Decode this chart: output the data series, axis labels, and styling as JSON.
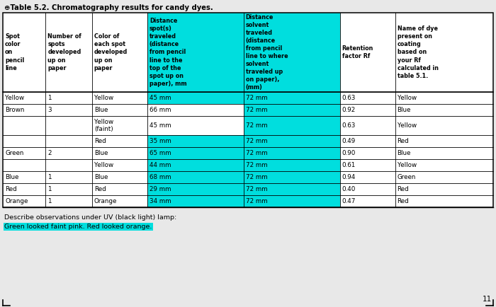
{
  "title": "⊕Table 5.2. Chromatography results for candy dyes.",
  "headers": [
    "Spot\ncolor\non\npencil\nline",
    "Number of\nspots\ndeveloped\nup on\npaper",
    "Color of\neach spot\ndeveloped\nup on\npaper",
    "Distance\nspot(s)\ntraveled\n(distance\nfrom pencil\nline to the\ntop of the\nspot up on\npaper), mm",
    "Distance\nsolvent\ntraveled\n(distance\nfrom pencil\nline to where\nsolvent\ntraveled up\non paper),\n(mm)",
    "Retention\nfactor Rf",
    "Name of dye\npresent on\ncoating\nbased on\nyour Rf\ncalculated in\ntable 5.1."
  ],
  "rows": [
    [
      "Yellow",
      "1",
      "Yellow",
      "45 mm",
      "72 mm",
      "0.63",
      "Yellow"
    ],
    [
      "Brown",
      "3",
      "Blue",
      "66 mm",
      "72 mm",
      "0.92",
      "Blue"
    ],
    [
      "",
      "",
      "Yellow\n(faint)",
      "45 mm",
      "72 mm",
      "0.63",
      "Yellow"
    ],
    [
      "",
      "",
      "Red",
      "35 mm",
      "72 mm",
      "0.49",
      "Red"
    ],
    [
      "Green",
      "2",
      "Blue",
      "65 mm",
      "72 mm",
      "0.90",
      "Blue"
    ],
    [
      "",
      "",
      "Yellow",
      "44 mm",
      "72 mm",
      "0.61",
      "Yellow"
    ],
    [
      "Blue",
      "1",
      "Blue",
      "68 mm",
      "72 mm",
      "0.94",
      "Green"
    ],
    [
      "Red",
      "1",
      "Red",
      "29 mm",
      "72 mm",
      "0.40",
      "Red"
    ],
    [
      "Orange",
      "1",
      "Orange",
      "34 mm",
      "72 mm",
      "0.47",
      "Red"
    ]
  ],
  "highlight_col3": [
    true,
    false,
    false,
    true,
    true,
    true,
    true,
    true,
    true
  ],
  "highlight_col4": [
    true,
    true,
    true,
    true,
    true,
    true,
    true,
    true,
    true
  ],
  "col3_highlight_color": "#00dede",
  "col4_highlight_color": "#00dede",
  "uv_label": "Describe observations under UV (black light) lamp:",
  "uv_text": "Green looked faint pink. Red looked orange.",
  "uv_text_highlight": "#00dede",
  "background": "#e8e8e8",
  "page_number": "11"
}
